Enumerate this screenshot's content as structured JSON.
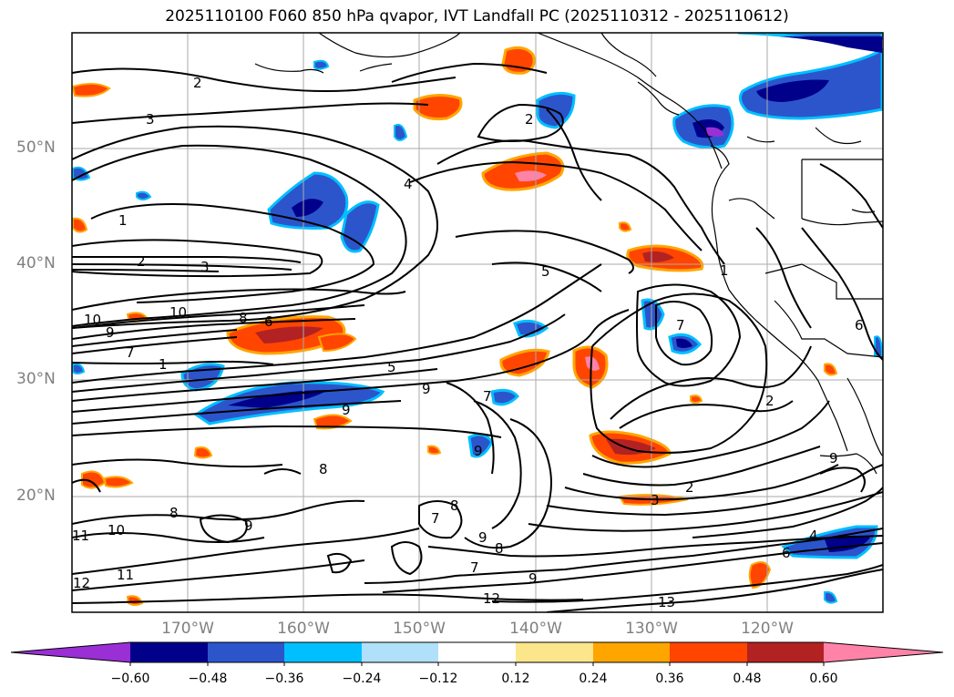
{
  "title": "2025110100 F060 850 hPa qvapor, IVT Landfall PC (2025110312 - 2025110612)",
  "latitude_labels": [
    "50°N",
    "40°N",
    "30°N",
    "20°N"
  ],
  "longitude_labels": [
    "170°W",
    "160°W",
    "150°W",
    "140°W",
    "130°W",
    "120°W"
  ],
  "colorbar": {
    "ticks": [
      "−0.60",
      "−0.48",
      "−0.36",
      "−0.24",
      "−0.12",
      "0.12",
      "0.24",
      "0.36",
      "0.48",
      "0.60"
    ],
    "colors": [
      "#9a2fd6",
      "#00008b",
      "#2c55cc",
      "#00bfff",
      "#b0e0fa",
      "#ffffff",
      "#fbe68b",
      "#ffa500",
      "#ff4500",
      "#b22222",
      "#ff83a8"
    ]
  },
  "contour_labels": [
    "2",
    "3",
    "2",
    "1",
    "2",
    "3",
    "4",
    "5",
    "10",
    "9",
    "10",
    "8",
    "6",
    "7",
    "1",
    "5",
    "9",
    "7",
    "9",
    "8",
    "9",
    "8",
    "7",
    "8",
    "9",
    "9",
    "8",
    "7",
    "9",
    "11",
    "10",
    "12",
    "11",
    "12",
    "13",
    "2",
    "2",
    "3",
    "4",
    "6",
    "7",
    "6",
    "9",
    "1"
  ],
  "colors": {
    "grid": "#aaaaaa",
    "contour": "#000000",
    "coast": "#000000",
    "axis_text": "#808080"
  }
}
